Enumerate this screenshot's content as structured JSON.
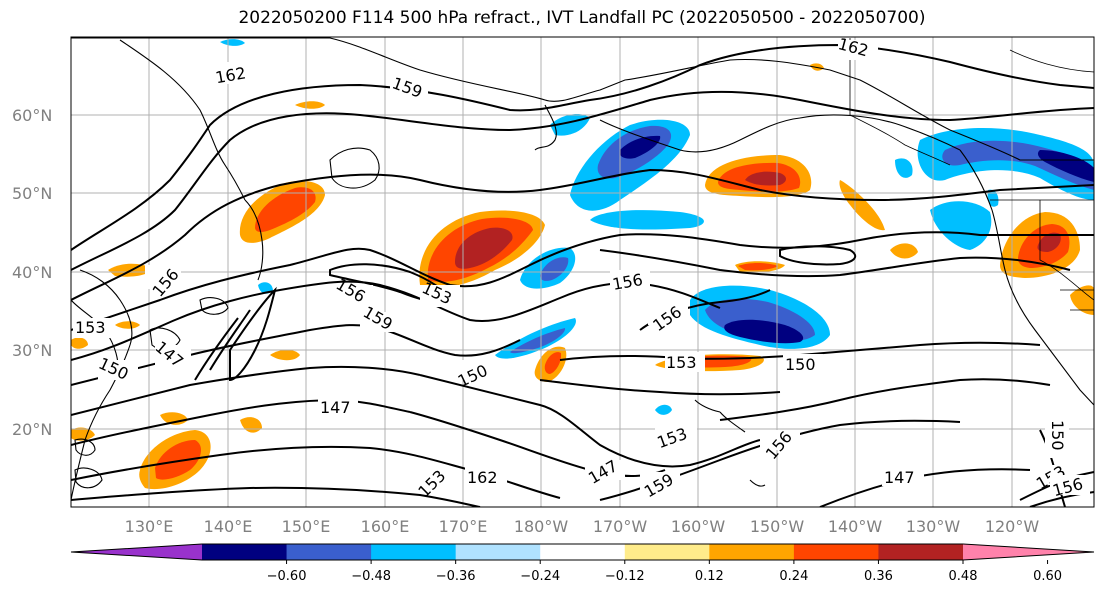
{
  "title": "2022050200 F114 500 hPa refract., IVT Landfall PC (2022050500 - 2022050700)",
  "lat_ticks": [
    "60°N",
    "50°N",
    "40°N",
    "30°N",
    "20°N"
  ],
  "lon_ticks": [
    "130°E",
    "140°E",
    "150°E",
    "160°E",
    "170°E",
    "180°W",
    "170°W",
    "160°W",
    "150°W",
    "140°W",
    "130°W",
    "120°W"
  ],
  "contour_labels": [
    "162",
    "159",
    "162",
    "156",
    "153",
    "156",
    "156",
    "159",
    "153",
    "147",
    "150",
    "156",
    "150",
    "153",
    "150",
    "147",
    "153",
    "162",
    "147",
    "159",
    "153",
    "156",
    "150",
    "147",
    "153",
    "156"
  ],
  "colorbar": {
    "colors": [
      "#9932CC",
      "#000080",
      "#3A5FCD",
      "#00BFFF",
      "#B0E2FF",
      "#FFFFFF",
      "#FFEC8B",
      "#FFA500",
      "#FF4500",
      "#B22222",
      "#FF82AB"
    ],
    "tick_labels": [
      "−0.60",
      "−0.48",
      "−0.36",
      "−0.24",
      "−0.12",
      "0.12",
      "0.24",
      "0.36",
      "0.48",
      "0.60"
    ]
  },
  "shading_colors": {
    "orange_light": "#FFEC8B",
    "orange": "#FFA500",
    "red": "#FF4500",
    "dark_red": "#B22222",
    "blue_light": "#B0E2FF",
    "blue": "#00BFFF",
    "blue_mid": "#3A5FCD",
    "navy": "#000080"
  }
}
